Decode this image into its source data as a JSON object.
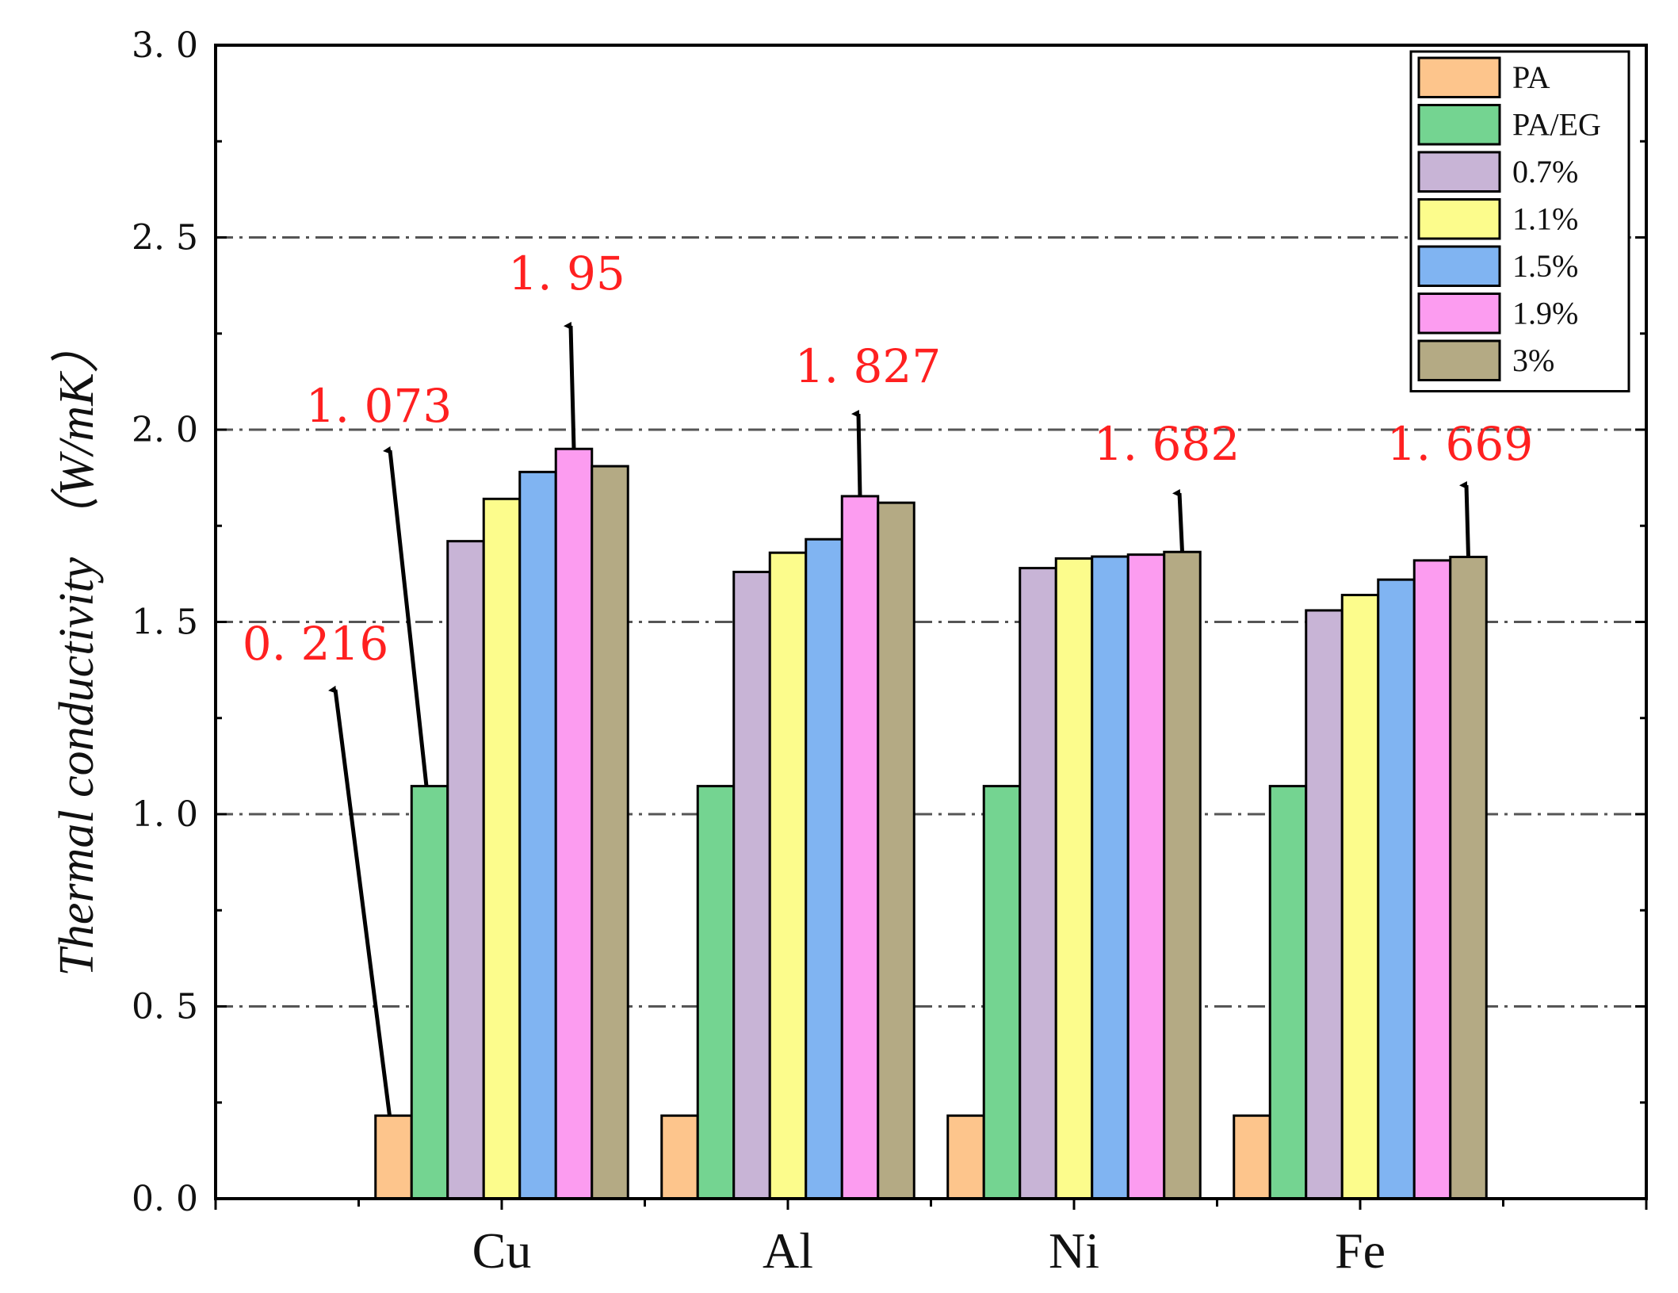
{
  "chart_data": {
    "type": "bar",
    "title": "",
    "xlabel": "",
    "ylabel": "Thermal conductivity （W/mK）",
    "ylim": [
      0.0,
      3.0
    ],
    "yticks": [
      "0.0",
      "0.5",
      "1.0",
      "1.5",
      "2.0",
      "2.5",
      "3.0"
    ],
    "grid": true,
    "legend_position": "top-right",
    "categories": [
      "Cu",
      "Al",
      "Ni",
      "Fe"
    ],
    "series": [
      {
        "name": "PA",
        "color": "#fdc58c",
        "values": [
          0.216,
          0.216,
          0.216,
          0.216
        ]
      },
      {
        "name": "PA/EG",
        "color": "#74d491",
        "values": [
          1.073,
          1.073,
          1.073,
          1.073
        ]
      },
      {
        "name": "0.7%",
        "color": "#c8b4d6",
        "values": [
          1.71,
          1.63,
          1.64,
          1.53
        ]
      },
      {
        "name": "1.1%",
        "color": "#fcfc8c",
        "values": [
          1.82,
          1.68,
          1.665,
          1.57
        ]
      },
      {
        "name": "1.5%",
        "color": "#80b4f2",
        "values": [
          1.89,
          1.715,
          1.67,
          1.61
        ]
      },
      {
        "name": "1.9%",
        "color": "#fc9cf0",
        "values": [
          1.95,
          1.827,
          1.675,
          1.66
        ]
      },
      {
        "name": "3%",
        "color": "#b4aa84",
        "values": [
          1.905,
          1.81,
          1.682,
          1.669
        ]
      }
    ],
    "annotations": [
      {
        "text": "0. 216",
        "category": "Cu",
        "series": "PA"
      },
      {
        "text": "1. 073",
        "category": "Cu",
        "series": "PA/EG"
      },
      {
        "text": "1. 95",
        "category": "Cu",
        "series": "1.9%"
      },
      {
        "text": "1. 827",
        "category": "Al",
        "series": "1.9%"
      },
      {
        "text": "1. 682",
        "category": "Ni",
        "series": "3%"
      },
      {
        "text": "1. 669",
        "category": "Fe",
        "series": "3%"
      }
    ]
  }
}
